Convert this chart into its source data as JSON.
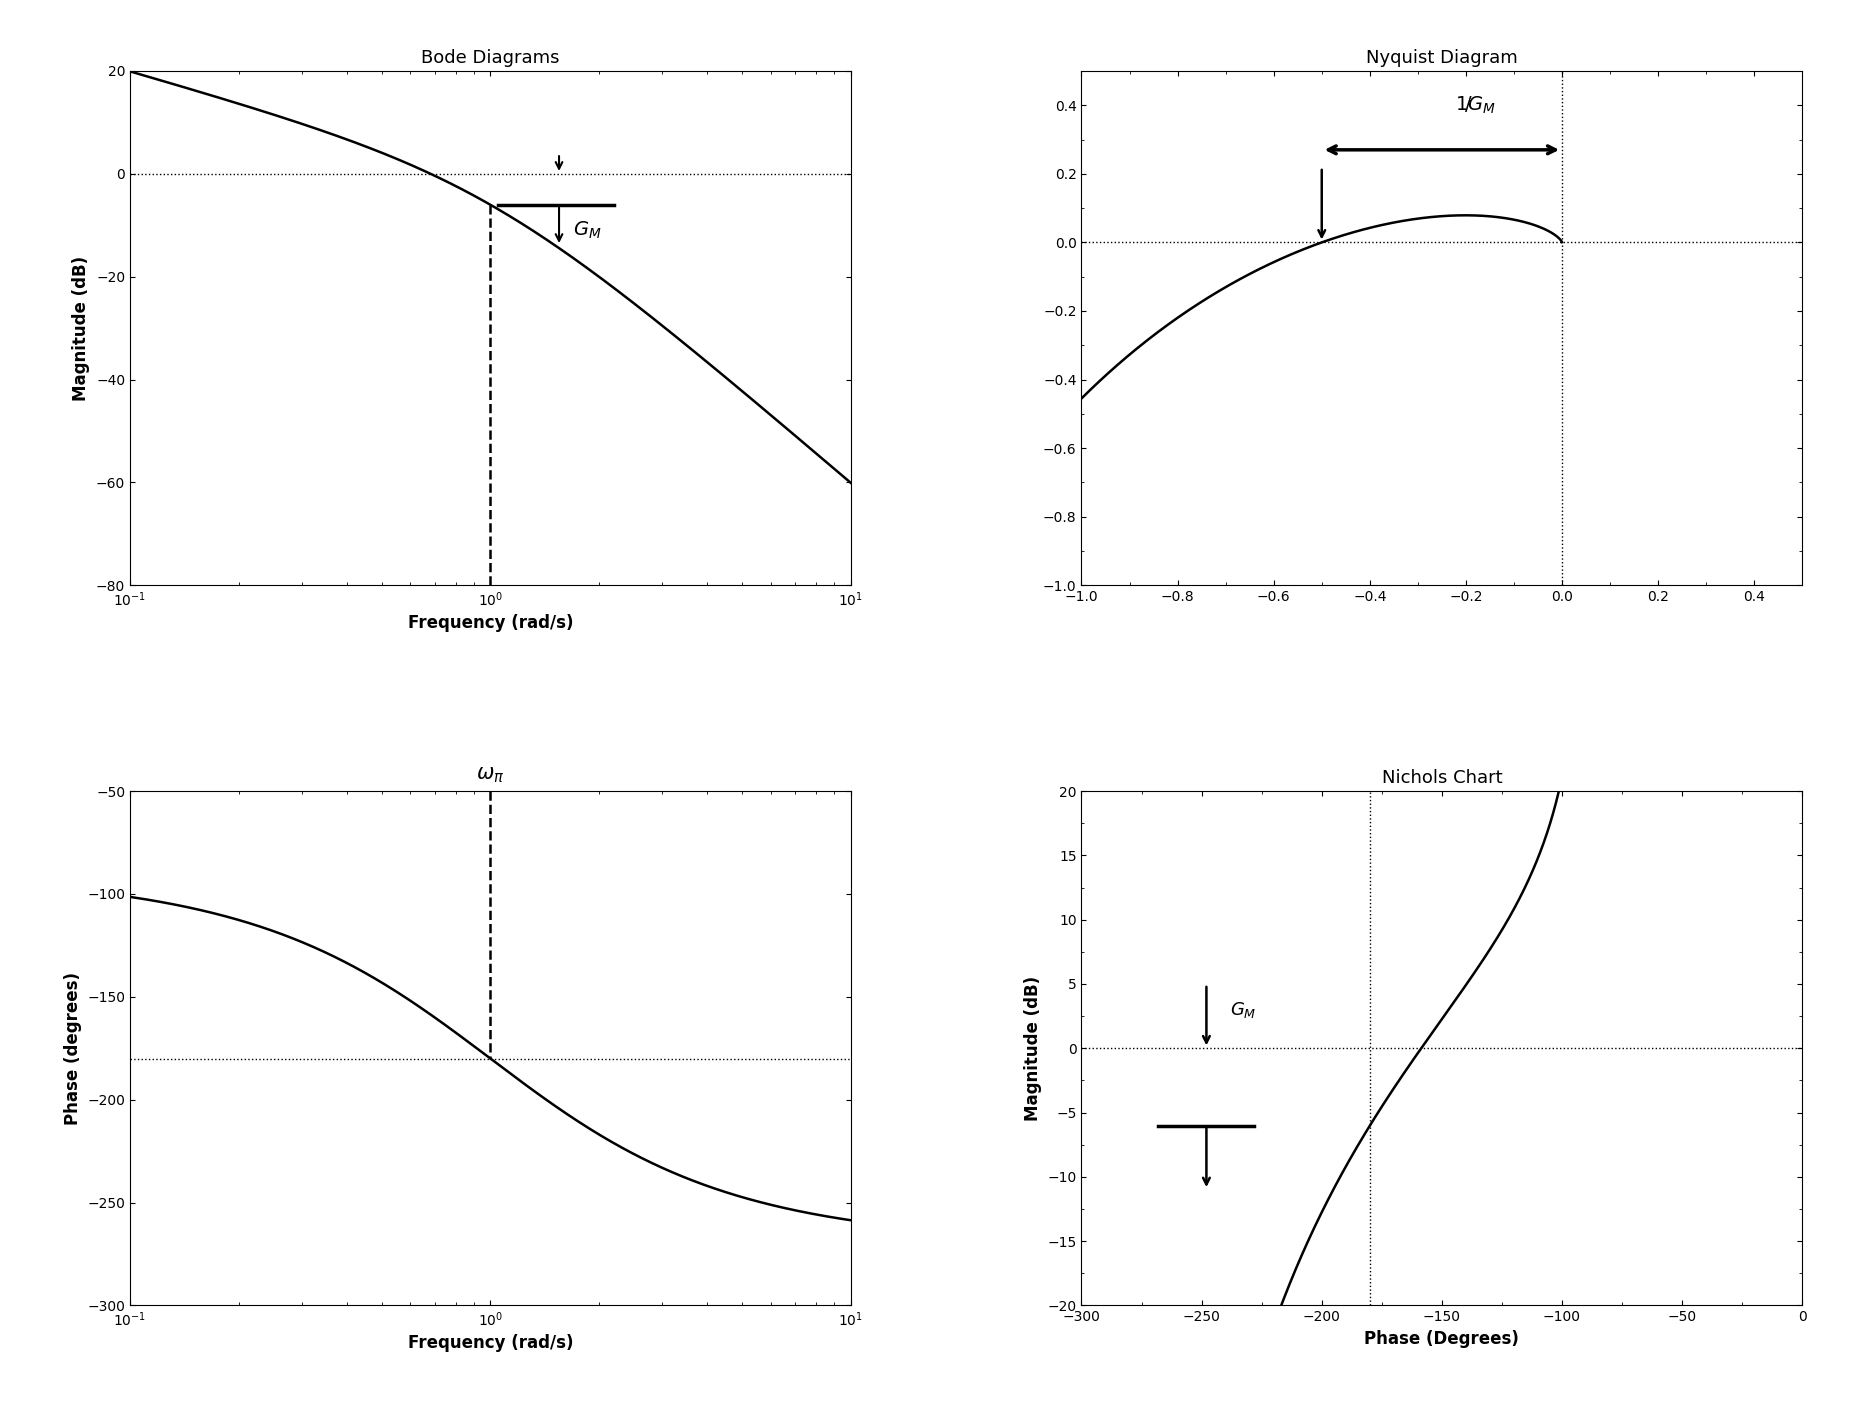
{
  "bode_title": "Bode Diagrams",
  "nyquist_title": "Nyquist Diagram",
  "nichols_title": "Nichols Chart",
  "bode_mag_ylabel": "Magnitude (dB)",
  "bode_phase_ylabel": "Phase (degrees)",
  "bode_mag_xlabel": "Frequency (rad/s)",
  "bode_phase_xlabel": "Frequency (rad/s)",
  "nichols_xlabel": "Phase (Degrees)",
  "nichols_ylabel": "Magnitude (dB)",
  "freq_min": 0.1,
  "freq_max": 10,
  "bode_mag_ylim": [
    -80,
    20
  ],
  "bode_phase_ylim": [
    -300,
    -50
  ],
  "nyquist_xlim": [
    -1,
    0.5
  ],
  "nyquist_ylim": [
    -1,
    0.5
  ],
  "nichols_xlim": [
    -300,
    0
  ],
  "nichols_ylim": [
    -20,
    20
  ],
  "omega_pi": 1.0,
  "background_color": "#ffffff"
}
